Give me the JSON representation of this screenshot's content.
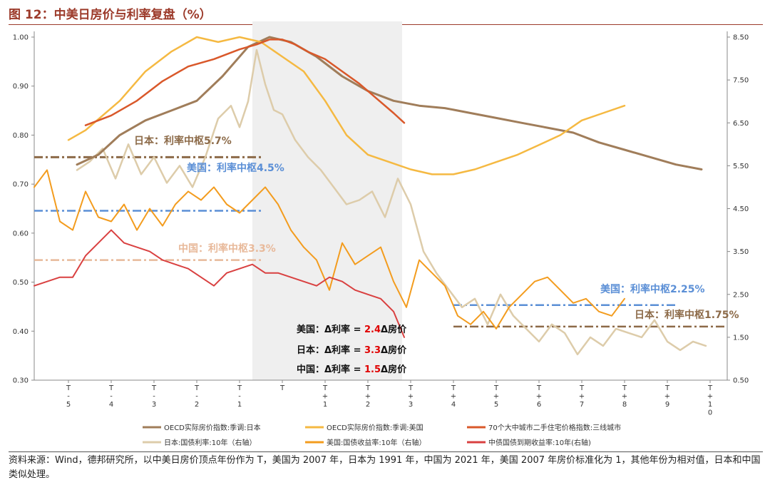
{
  "title": "图 12：中美日房价与利率复盘（%）",
  "source_note": "资料来源：Wind，德邦研究所，以中美日房价顶点年份作为 T，美国为 2007 年，日本为 1991 年，中国为 2021 年，美国 2007 年房价标准化为 1，其他年份为相对值，日本和中国类似处理。",
  "colors": {
    "jp_house": "#a07d5a",
    "us_house": "#f5b942",
    "cn_house": "#d9582a",
    "jp_rate": "#ddccaa",
    "us_rate": "#f39c1e",
    "cn_rate": "#d94040",
    "us_center": "#5b8fd6",
    "jp_center": "#8c6a48",
    "cn_center": "#e8b99a",
    "shade": "#efefef",
    "red_num": "#e00000"
  },
  "annotations": {
    "jp_center_1": "日本：利率中枢5.7%",
    "us_center_1": "美国：利率中枢4.5%",
    "cn_center_1": "中国：利率中枢3.3%",
    "us_center_2": "美国：利率中枢2.25%",
    "jp_center_2": "日本：利率中枢1.75%"
  },
  "formulas": [
    {
      "prefix": "美国：Δ利率 = ",
      "num": "2.4",
      "suffix": "Δ房价"
    },
    {
      "prefix": "日本：Δ利率 = ",
      "num": "3.3",
      "suffix": "Δ房价"
    },
    {
      "prefix": "中国：Δ利率 = ",
      "num": "1.5",
      "suffix": "Δ房价"
    }
  ],
  "chart_data": {
    "type": "line",
    "title": "中美日房价与利率复盘（%）",
    "left_axis": {
      "min": 0.3,
      "max": 1.0,
      "ticks": [
        "0.30",
        "0.40",
        "0.50",
        "0.60",
        "0.70",
        "0.80",
        "0.90",
        "1.00"
      ]
    },
    "right_axis": {
      "min": 0.5,
      "max": 8.5,
      "ticks": [
        "0.50",
        "1.50",
        "2.50",
        "3.50",
        "4.50",
        "5.50",
        "6.50",
        "7.50",
        "8.50"
      ]
    },
    "x_ticks": [
      "T-5",
      "T-4",
      "T-3",
      "T-2",
      "T-1",
      "T",
      "T+1",
      "T+2",
      "T+3",
      "T+4",
      "T+5",
      "T+6",
      "T+7",
      "T+8",
      "T+9",
      "T+10"
    ],
    "x_range": [
      -5.8,
      10.4
    ],
    "shaded_range": [
      -0.7,
      2.8
    ],
    "series": [
      {
        "name": "OECD实际房价指数:季调:日本",
        "key": "jp_house",
        "axis": "left",
        "width": 3,
        "x": [
          -4.8,
          -4.3,
          -3.8,
          -3.2,
          -2.6,
          -2.0,
          -1.4,
          -0.8,
          -0.3,
          0.2,
          0.8,
          1.4,
          2.0,
          2.6,
          3.2,
          3.8,
          4.4,
          5.0,
          5.6,
          6.2,
          6.8,
          7.4,
          8.0,
          8.6,
          9.2,
          9.8
        ],
        "y": [
          0.74,
          0.76,
          0.8,
          0.83,
          0.85,
          0.87,
          0.92,
          0.98,
          1.0,
          0.99,
          0.96,
          0.92,
          0.89,
          0.87,
          0.86,
          0.855,
          0.845,
          0.835,
          0.825,
          0.815,
          0.805,
          0.785,
          0.77,
          0.755,
          0.74,
          0.73
        ]
      },
      {
        "name": "OECD实际房价指数:季调:美国",
        "key": "us_house",
        "axis": "left",
        "width": 2.5,
        "x": [
          -5.0,
          -4.6,
          -4.2,
          -3.8,
          -3.2,
          -2.6,
          -2.0,
          -1.5,
          -1.0,
          -0.5,
          0.0,
          0.5,
          1.0,
          1.5,
          2.0,
          2.5,
          3.0,
          3.5,
          4.0,
          4.5,
          5.0,
          5.5,
          6.0,
          6.5,
          7.0,
          7.5,
          8.0
        ],
        "y": [
          0.79,
          0.81,
          0.84,
          0.87,
          0.93,
          0.97,
          1.0,
          0.99,
          1.0,
          0.99,
          0.96,
          0.93,
          0.87,
          0.8,
          0.76,
          0.745,
          0.73,
          0.72,
          0.72,
          0.73,
          0.745,
          0.76,
          0.78,
          0.8,
          0.83,
          0.845,
          0.86
        ]
      },
      {
        "name": "70个大中城市二手住宅价格指数:三线城市",
        "key": "cn_house",
        "axis": "left",
        "width": 2.5,
        "x": [
          -4.6,
          -4.0,
          -3.4,
          -2.8,
          -2.2,
          -1.6,
          -1.0,
          -0.6,
          -0.3,
          0.0,
          0.3,
          0.6,
          1.0,
          1.4,
          1.8,
          2.2,
          2.6,
          2.85
        ],
        "y": [
          0.82,
          0.84,
          0.87,
          0.91,
          0.94,
          0.955,
          0.975,
          0.985,
          0.995,
          0.995,
          0.985,
          0.97,
          0.955,
          0.93,
          0.905,
          0.875,
          0.845,
          0.825
        ]
      },
      {
        "name": "日本:国债利率:10年（右轴）",
        "key": "jp_rate",
        "axis": "right",
        "width": 2.5,
        "x": [
          -4.8,
          -4.5,
          -4.2,
          -3.9,
          -3.6,
          -3.3,
          -3.0,
          -2.7,
          -2.4,
          -2.1,
          -1.8,
          -1.5,
          -1.2,
          -1.0,
          -0.8,
          -0.6,
          -0.4,
          -0.2,
          0.0,
          0.3,
          0.6,
          0.9,
          1.2,
          1.5,
          1.8,
          2.1,
          2.4,
          2.7,
          3.0,
          3.3,
          3.6,
          3.9,
          4.2,
          4.5,
          4.8,
          5.1,
          5.4,
          5.7,
          6.0,
          6.3,
          6.6,
          6.9,
          7.2,
          7.5,
          7.8,
          8.1,
          8.4,
          8.7,
          9.0,
          9.3,
          9.6,
          9.9
        ],
        "y": [
          5.4,
          5.6,
          5.9,
          5.2,
          6.0,
          5.3,
          5.7,
          5.1,
          5.5,
          5.0,
          5.7,
          6.6,
          6.9,
          6.4,
          7.0,
          8.2,
          7.4,
          6.8,
          6.7,
          6.1,
          5.7,
          5.4,
          5.0,
          4.6,
          4.7,
          4.9,
          4.3,
          5.2,
          4.6,
          3.5,
          3.0,
          2.6,
          2.2,
          2.4,
          1.8,
          2.5,
          2.0,
          1.7,
          1.4,
          1.8,
          1.6,
          1.1,
          1.5,
          1.3,
          1.7,
          1.6,
          1.5,
          1.9,
          1.4,
          1.2,
          1.4,
          1.3
        ]
      },
      {
        "name": "美国:国债收益率:10年（右轴）",
        "key": "us_rate",
        "axis": "right",
        "width": 2,
        "x": [
          -5.8,
          -5.5,
          -5.2,
          -4.9,
          -4.6,
          -4.3,
          -4.0,
          -3.7,
          -3.4,
          -3.1,
          -2.8,
          -2.5,
          -2.2,
          -1.9,
          -1.6,
          -1.3,
          -1.0,
          -0.7,
          -0.4,
          -0.1,
          0.2,
          0.5,
          0.8,
          1.1,
          1.4,
          1.7,
          2.0,
          2.3,
          2.6,
          2.9,
          3.2,
          3.5,
          3.8,
          4.1,
          4.4,
          4.7,
          5.0,
          5.3,
          5.6,
          5.9,
          6.2,
          6.5,
          6.8,
          7.1,
          7.4,
          7.7,
          8.0
        ],
        "y": [
          5.0,
          5.4,
          4.2,
          4.0,
          4.9,
          4.3,
          4.2,
          4.6,
          4.0,
          4.5,
          4.1,
          4.6,
          4.9,
          4.7,
          5.0,
          4.6,
          4.4,
          4.7,
          5.0,
          4.6,
          4.0,
          3.6,
          3.3,
          2.6,
          3.7,
          3.2,
          3.4,
          3.6,
          2.8,
          2.2,
          3.3,
          3.0,
          2.7,
          2.0,
          1.8,
          2.1,
          1.7,
          2.2,
          2.5,
          2.8,
          2.9,
          2.6,
          2.3,
          2.4,
          2.1,
          2.0,
          2.4
        ]
      },
      {
        "name": "中债国债到期收益率:10年(右轴)",
        "key": "cn_rate",
        "axis": "right",
        "width": 2,
        "x": [
          -5.8,
          -5.5,
          -5.2,
          -4.9,
          -4.6,
          -4.3,
          -4.0,
          -3.7,
          -3.4,
          -3.1,
          -2.8,
          -2.5,
          -2.2,
          -1.9,
          -1.6,
          -1.3,
          -1.0,
          -0.7,
          -0.4,
          -0.1,
          0.2,
          0.5,
          0.8,
          1.1,
          1.4,
          1.7,
          2.0,
          2.3,
          2.6,
          2.85
        ],
        "y": [
          2.7,
          2.8,
          2.9,
          2.9,
          3.4,
          3.7,
          4.0,
          3.7,
          3.6,
          3.5,
          3.3,
          3.2,
          3.1,
          2.9,
          2.7,
          3.0,
          3.1,
          3.2,
          3.0,
          3.0,
          2.9,
          2.8,
          2.7,
          2.9,
          2.8,
          2.6,
          2.5,
          2.4,
          2.1,
          1.5
        ]
      }
    ],
    "center_lines": [
      {
        "key": "jp_center",
        "axis": "right",
        "value": 5.7,
        "x": [
          -5.8,
          -0.5
        ],
        "width": 3
      },
      {
        "key": "us_center",
        "axis": "right",
        "value": 4.45,
        "x": [
          -5.8,
          -0.5
        ],
        "width": 2.5
      },
      {
        "key": "cn_center",
        "axis": "right",
        "value": 3.3,
        "x": [
          -5.8,
          -0.5
        ],
        "width": 2.5
      },
      {
        "key": "us_center",
        "axis": "right",
        "value": 2.25,
        "x": [
          4.0,
          9.2
        ],
        "width": 2.5
      },
      {
        "key": "jp_center",
        "axis": "right",
        "value": 1.75,
        "x": [
          4.0,
          10.4
        ],
        "width": 2.5
      }
    ]
  }
}
